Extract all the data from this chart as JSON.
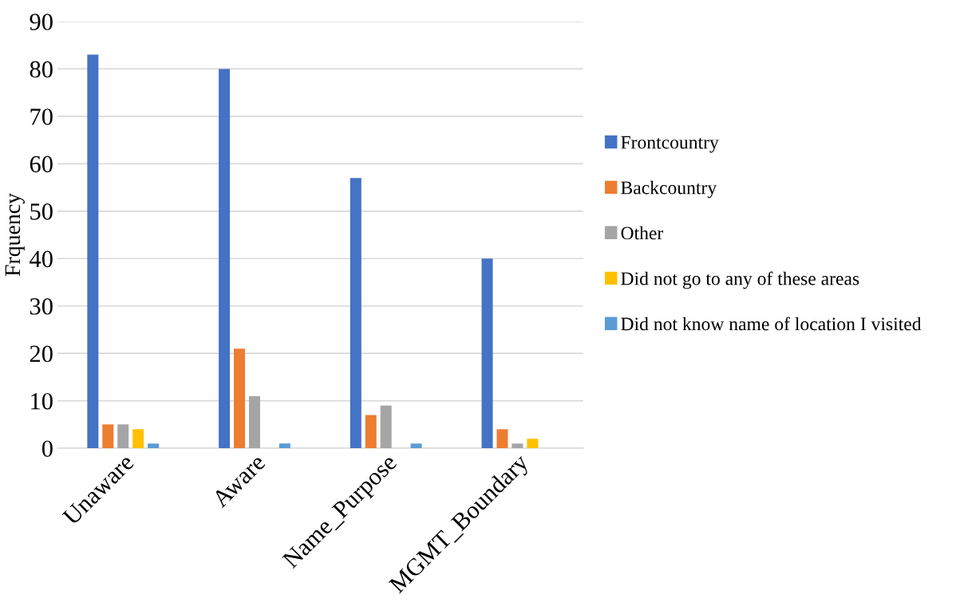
{
  "chart_data": {
    "type": "bar",
    "ylabel": "Frquency",
    "categories": [
      "Unaware",
      "Aware",
      "Name_Purpose",
      "MGMT_Boundary"
    ],
    "series": [
      {
        "name": "Frontcountry",
        "color": "#4472c4",
        "values": [
          83,
          80,
          57,
          40
        ]
      },
      {
        "name": "Backcountry",
        "color": "#ed7d31",
        "values": [
          5,
          21,
          7,
          4
        ]
      },
      {
        "name": "Other",
        "color": "#a5a5a5",
        "values": [
          5,
          11,
          9,
          1
        ]
      },
      {
        "name": "Did not go to any of these areas",
        "color": "#ffc000",
        "values": [
          4,
          0,
          0,
          2
        ]
      },
      {
        "name": "Did not know name of location I visited",
        "color": "#5b9bd5",
        "values": [
          1,
          1,
          1,
          0
        ]
      }
    ],
    "ylim": [
      0,
      90
    ],
    "yticks": [
      0,
      10,
      20,
      30,
      40,
      50,
      60,
      70,
      80,
      90
    ],
    "grid": "y",
    "legend": "right"
  }
}
